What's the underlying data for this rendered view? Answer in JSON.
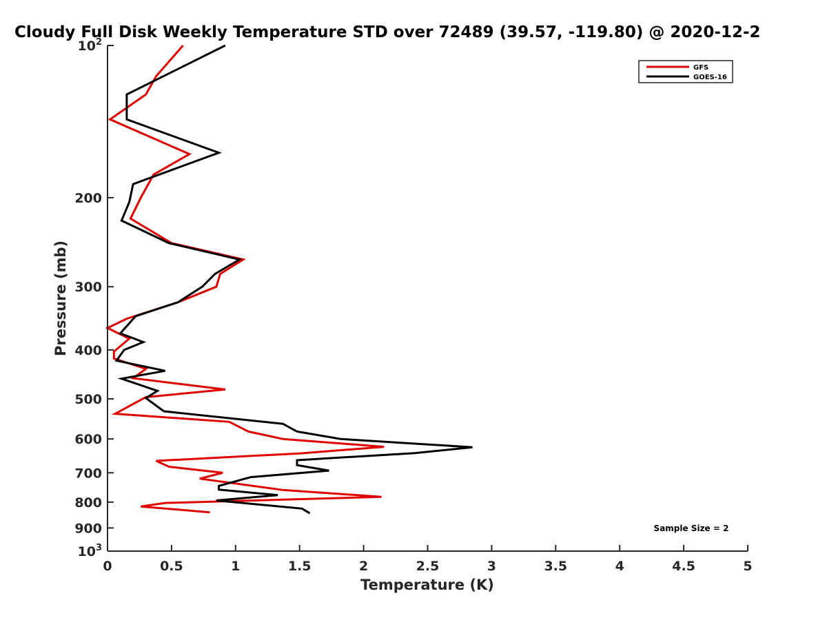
{
  "chart_data": {
    "type": "line",
    "title": "Cloudy Full Disk Weekly Temperature STD over 72489 (39.57, -119.80) @ 2020-12-2",
    "xlabel": "Temperature (K)",
    "ylabel": "Pressure (mb)",
    "xlim": [
      0,
      5
    ],
    "ylim": [
      100,
      1000
    ],
    "y_scale": "log",
    "y_reversed": true,
    "x_ticks": [
      "0",
      "0.5",
      "1",
      "1.5",
      "2",
      "2.5",
      "3",
      "3.5",
      "4",
      "4.5",
      "5"
    ],
    "y_ticks": [
      {
        "value": 100,
        "base": "10",
        "exp": "2"
      },
      {
        "value": 200,
        "label": "200"
      },
      {
        "value": 300,
        "label": "300"
      },
      {
        "value": 400,
        "label": "400"
      },
      {
        "value": 500,
        "label": "500"
      },
      {
        "value": 600,
        "label": "600"
      },
      {
        "value": 700,
        "label": "700"
      },
      {
        "value": 800,
        "label": "800"
      },
      {
        "value": 900,
        "label": "900"
      },
      {
        "value": 1000,
        "base": "10",
        "exp": "3"
      }
    ],
    "grid": false,
    "legend_position": "top-right",
    "annotation": "Sample Size = 2",
    "series": [
      {
        "name": "GFS",
        "color": "#e00000",
        "points": [
          [
            0.59,
            100
          ],
          [
            0.38,
            115
          ],
          [
            0.3,
            125
          ],
          [
            0.02,
            140
          ],
          [
            0.64,
            164
          ],
          [
            0.36,
            180
          ],
          [
            0.26,
            200
          ],
          [
            0.18,
            220
          ],
          [
            0.5,
            246
          ],
          [
            1.06,
            265
          ],
          [
            0.88,
            283
          ],
          [
            0.85,
            300
          ],
          [
            0.55,
            322
          ],
          [
            0.15,
            347
          ],
          [
            0.0,
            362
          ],
          [
            0.17,
            380
          ],
          [
            0.05,
            403
          ],
          [
            0.05,
            416
          ],
          [
            0.3,
            436
          ],
          [
            0.2,
            455
          ],
          [
            0.92,
            479
          ],
          [
            0.3,
            496
          ],
          [
            0.06,
            535
          ],
          [
            0.95,
            555
          ],
          [
            1.1,
            580
          ],
          [
            1.37,
            600
          ],
          [
            2.16,
            622
          ],
          [
            1.5,
            641
          ],
          [
            0.38,
            663
          ],
          [
            0.48,
            681
          ],
          [
            0.9,
            700
          ],
          [
            0.72,
            719
          ],
          [
            1.37,
            757
          ],
          [
            2.14,
            781
          ],
          [
            0.45,
            803
          ],
          [
            0.26,
            816
          ],
          [
            0.8,
            838
          ]
        ]
      },
      {
        "name": "GOES-16",
        "color": "#000000",
        "points": [
          [
            0.92,
            100
          ],
          [
            0.15,
            125
          ],
          [
            0.15,
            140
          ],
          [
            0.87,
            163
          ],
          [
            0.2,
            188
          ],
          [
            0.17,
            204
          ],
          [
            0.11,
            222
          ],
          [
            0.48,
            246
          ],
          [
            1.03,
            265
          ],
          [
            0.84,
            283
          ],
          [
            0.74,
            300
          ],
          [
            0.55,
            322
          ],
          [
            0.22,
            343
          ],
          [
            0.1,
            371
          ],
          [
            0.28,
            386
          ],
          [
            0.13,
            400
          ],
          [
            0.07,
            420
          ],
          [
            0.45,
            440
          ],
          [
            0.11,
            456
          ],
          [
            0.39,
            482
          ],
          [
            0.3,
            498
          ],
          [
            0.44,
            529
          ],
          [
            1.37,
            560
          ],
          [
            1.48,
            580
          ],
          [
            1.82,
            600
          ],
          [
            2.85,
            623
          ],
          [
            2.4,
            640
          ],
          [
            1.48,
            661
          ],
          [
            1.48,
            676
          ],
          [
            1.73,
            693
          ],
          [
            1.12,
            714
          ],
          [
            0.87,
            743
          ],
          [
            0.87,
            756
          ],
          [
            1.33,
            775
          ],
          [
            0.85,
            794
          ],
          [
            1.52,
            824
          ],
          [
            1.58,
            842
          ]
        ]
      }
    ]
  }
}
